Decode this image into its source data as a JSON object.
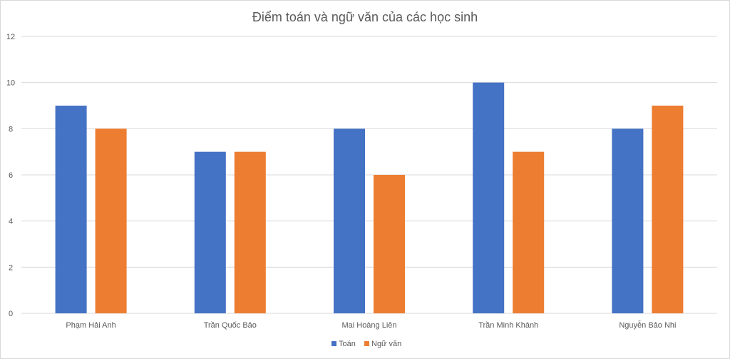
{
  "chart_data": {
    "type": "bar",
    "title": "Điểm toán và ngữ văn của các học sinh",
    "xlabel": "",
    "ylabel": "",
    "categories": [
      "Phạm Hải Anh",
      "Trần Quốc Bảo",
      "Mai Hoàng Liên",
      "Trần Minh Khánh",
      "Nguyễn Bảo Nhi"
    ],
    "series": [
      {
        "name": "Toán",
        "values": [
          9,
          7,
          8,
          10,
          8
        ],
        "color": "#4472C4"
      },
      {
        "name": "Ngữ văn",
        "values": [
          8,
          7,
          6,
          7,
          9
        ],
        "color": "#ED7D31"
      }
    ],
    "ylim": [
      0,
      12
    ],
    "yticks": [
      "0",
      "2",
      "4",
      "6",
      "8",
      "10",
      "12"
    ],
    "grid": true,
    "legend_position": "bottom"
  }
}
